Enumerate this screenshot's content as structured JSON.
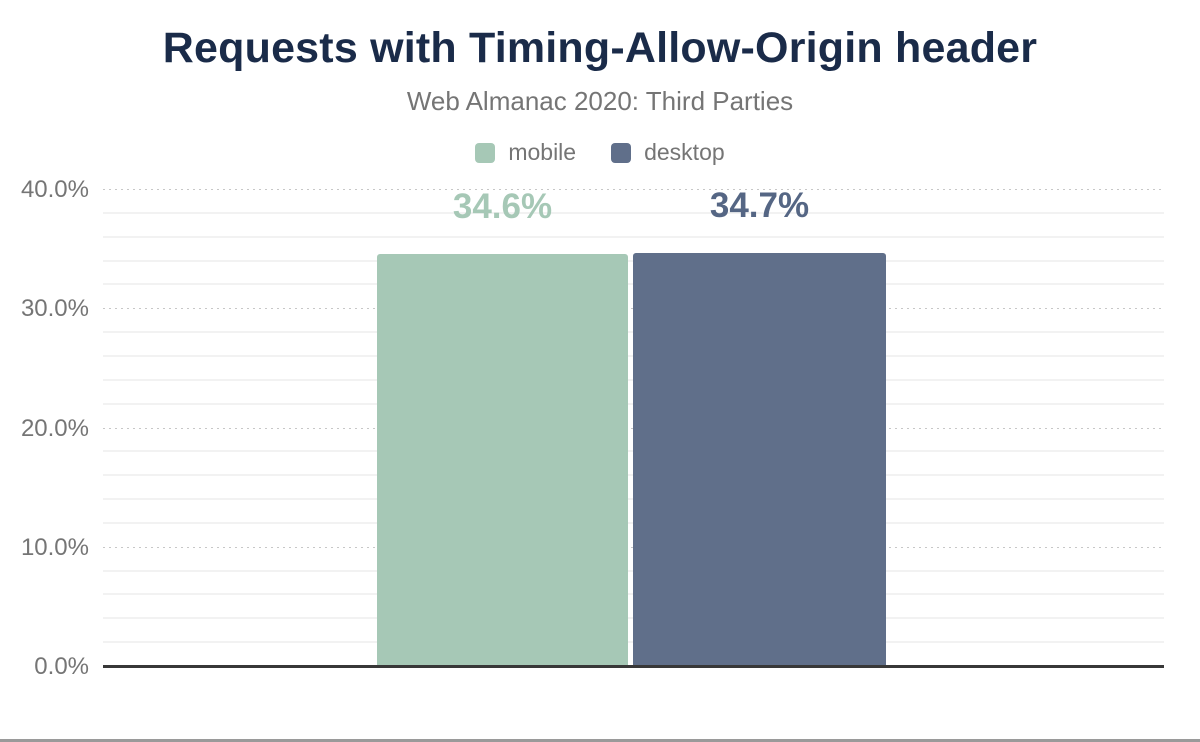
{
  "page": {
    "background": "#ffffff",
    "bottom_border_color": "#9a9a9a"
  },
  "chart_data": {
    "type": "bar",
    "title": "Requests with Timing-Allow-Origin header",
    "subtitle": "Web Almanac 2020: Third Parties",
    "title_color": "#1a2b49",
    "text_color": "#757575",
    "categories": [
      "mobile",
      "desktop"
    ],
    "series": [
      {
        "name": "mobile",
        "value": 34.6,
        "data_label": "34.6%",
        "color": "#a6c8b6",
        "label_color": "#a6c8b6"
      },
      {
        "name": "desktop",
        "value": 34.7,
        "data_label": "34.7%",
        "color": "#606f8a",
        "label_color": "#556684"
      }
    ],
    "xlabel": "",
    "ylabel": "",
    "ylim": [
      0,
      40
    ],
    "y_ticks": [
      {
        "label": "40.0%",
        "value": 40
      },
      {
        "label": "30.0%",
        "value": 30
      },
      {
        "label": "20.0%",
        "value": 20
      },
      {
        "label": "10.0%",
        "value": 10
      },
      {
        "label": "0.0%",
        "value": 0
      }
    ],
    "minor_grid_step": 2,
    "grid": true,
    "legend_position": "top",
    "axis_line_color": "#383838",
    "major_grid_style": "dotted",
    "minor_grid_style": "solid"
  }
}
